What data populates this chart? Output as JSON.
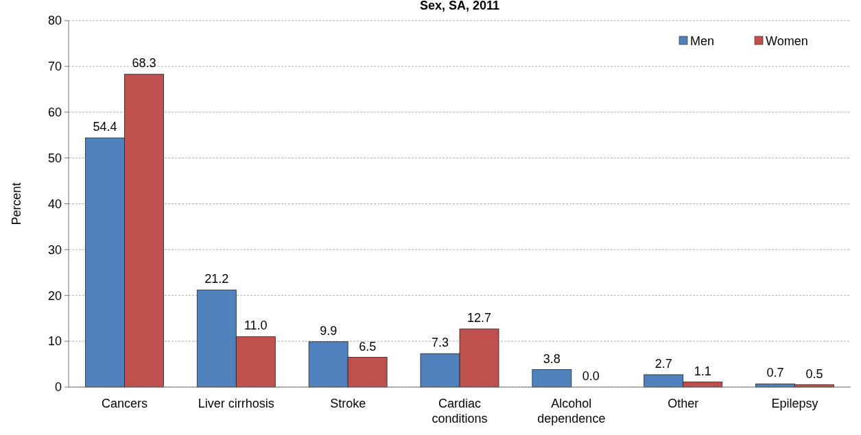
{
  "chart_data": {
    "type": "bar",
    "title": "Sex, SA, 2011",
    "ylabel": "Percent",
    "categories": [
      "Cancers",
      "Liver cirrhosis",
      "Stroke",
      "Cardiac conditions",
      "Alcohol dependence",
      "Other",
      "Epilepsy"
    ],
    "series": [
      {
        "name": "Men",
        "color": "#4f81bd",
        "values": [
          54.4,
          21.2,
          9.9,
          7.3,
          3.8,
          2.7,
          0.7
        ]
      },
      {
        "name": "Women",
        "color": "#c0504d",
        "values": [
          68.3,
          11.0,
          6.5,
          12.7,
          0.0,
          1.1,
          0.5
        ]
      }
    ],
    "value_labels": [
      [
        "54.4",
        "21.2",
        "9.9",
        "7.3",
        "3.8",
        "2.7",
        "0.7"
      ],
      [
        "68.3",
        "11.0",
        "6.5",
        "12.7",
        "0.0",
        "1.1",
        "0.5"
      ]
    ],
    "ylim": [
      0,
      80
    ],
    "yticks": [
      0,
      10,
      20,
      30,
      40,
      50,
      60,
      70,
      80
    ],
    "grid": "y",
    "legend": "top right"
  }
}
